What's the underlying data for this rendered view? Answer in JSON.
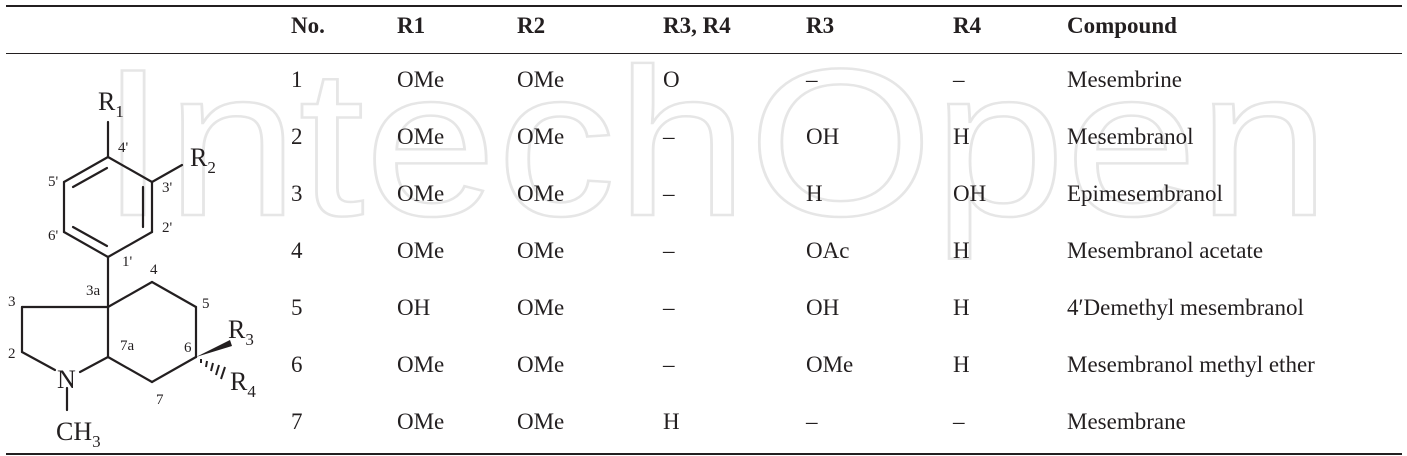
{
  "table": {
    "headers": [
      "No.",
      "R1",
      "R2",
      "R3, R4",
      "R3",
      "R4",
      "Compound"
    ],
    "rows": [
      [
        "1",
        "OMe",
        "OMe",
        "O",
        "–",
        "–",
        "Mesembrine"
      ],
      [
        "2",
        "OMe",
        "OMe",
        "–",
        "OH",
        "H",
        "Mesembranol"
      ],
      [
        "3",
        "OMe",
        "OMe",
        "–",
        "H",
        "OH",
        "Epimesembranol"
      ],
      [
        "4",
        "OMe",
        "OMe",
        "–",
        "OAc",
        "H",
        "Mesembranol acetate"
      ],
      [
        "5",
        "OH",
        "OMe",
        "–",
        "OH",
        "H",
        "4′Demethyl mesembranol"
      ],
      [
        "6",
        "OMe",
        "OMe",
        "–",
        "OMe",
        "H",
        "Mesembranol methyl ether"
      ],
      [
        "7",
        "OMe",
        "OMe",
        "H",
        "–",
        "–",
        "Mesembrane"
      ]
    ]
  },
  "structure": {
    "substituents": {
      "r1": {
        "main": "R",
        "sub": "1"
      },
      "r2": {
        "main": "R",
        "sub": "2"
      },
      "r3": {
        "main": "R",
        "sub": "3"
      },
      "r4": {
        "main": "R",
        "sub": "4"
      },
      "nitrogen": "N",
      "methyl": {
        "main": "CH",
        "sub": "3"
      }
    },
    "locants": {
      "p4": "4'",
      "p3": "3'",
      "p5": "5'",
      "p2": "2'",
      "p6": "6'",
      "p1": "1'",
      "c4": "4",
      "c3a": "3a",
      "c3": "3",
      "c5": "5",
      "c2": "2",
      "c7a": "7a",
      "c6": "6",
      "c7": "7"
    }
  },
  "watermark": {
    "text": "IntechOpen"
  },
  "colors": {
    "text": "#231f20",
    "rule": "#231f20",
    "watermark": "#e6e6e6"
  }
}
